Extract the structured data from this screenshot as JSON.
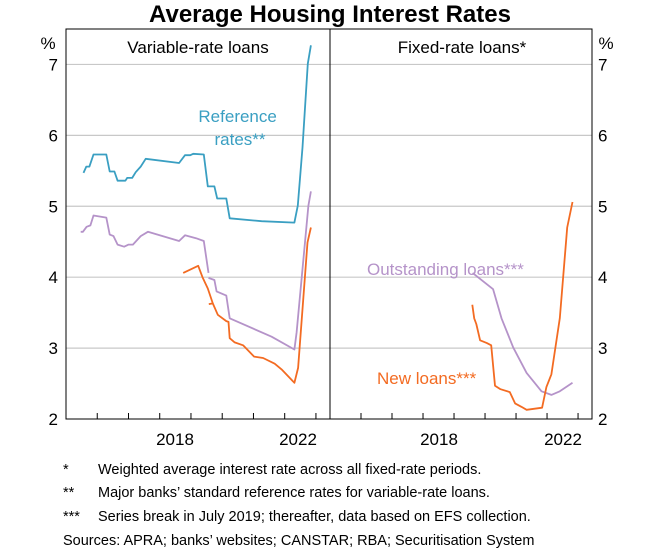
{
  "chart_data": [
    {
      "type": "line",
      "title": "Average Housing Interest Rates",
      "panel_title": "Variable-rate loans",
      "ylabel": "%",
      "ylim": [
        2,
        7.5
      ],
      "yticks": [
        2,
        3,
        4,
        5,
        6,
        7
      ],
      "xlim": [
        2015,
        2023.45
      ],
      "xtick_labels": [
        "2018",
        "2022"
      ],
      "grid": true,
      "series": [
        {
          "name": "Reference rates**",
          "color": "#3a9fc2",
          "segments": [
            [
              [
                2015.56,
                5.47
              ],
              [
                2015.65,
                5.56
              ],
              [
                2015.75,
                5.56
              ],
              [
                2015.88,
                5.73
              ],
              [
                2016.29,
                5.73
              ],
              [
                2016.4,
                5.49
              ],
              [
                2016.55,
                5.49
              ],
              [
                2016.65,
                5.36
              ],
              [
                2016.9,
                5.36
              ],
              [
                2016.96,
                5.4
              ],
              [
                2017.12,
                5.4
              ],
              [
                2017.23,
                5.48
              ],
              [
                2017.39,
                5.56
              ],
              [
                2017.55,
                5.67
              ],
              [
                2018.62,
                5.61
              ],
              [
                2018.81,
                5.72
              ],
              [
                2018.98,
                5.72
              ],
              [
                2019.07,
                5.74
              ],
              [
                2019.41,
                5.73
              ],
              [
                2019.54,
                5.28
              ],
              [
                2019.75,
                5.28
              ],
              [
                2019.84,
                5.11
              ],
              [
                2020.13,
                5.11
              ],
              [
                2020.24,
                4.83
              ],
              [
                2021.26,
                4.79
              ],
              [
                2022.31,
                4.77
              ],
              [
                2022.42,
                5.01
              ],
              [
                2022.57,
                5.83
              ],
              [
                2022.74,
                7.01
              ],
              [
                2022.84,
                7.27
              ]
            ]
          ]
        },
        {
          "name": "",
          "color": "#b593c9",
          "segments": [
            [
              [
                2015.47,
                4.64
              ],
              [
                2015.54,
                4.64
              ],
              [
                2015.66,
                4.71
              ],
              [
                2015.78,
                4.73
              ],
              [
                2015.88,
                4.87
              ],
              [
                2016.29,
                4.84
              ],
              [
                2016.4,
                4.6
              ],
              [
                2016.52,
                4.58
              ],
              [
                2016.65,
                4.46
              ],
              [
                2016.86,
                4.43
              ],
              [
                2017.0,
                4.46
              ],
              [
                2017.14,
                4.46
              ],
              [
                2017.39,
                4.58
              ],
              [
                2017.62,
                4.64
              ],
              [
                2018.62,
                4.51
              ],
              [
                2018.81,
                4.59
              ],
              [
                2019.16,
                4.55
              ],
              [
                2019.41,
                4.51
              ],
              [
                2019.56,
                4.06
              ]
            ],
            [
              [
                2019.56,
                3.99
              ],
              [
                2019.75,
                3.96
              ],
              [
                2019.82,
                3.8
              ],
              [
                2020.13,
                3.74
              ],
              [
                2020.24,
                3.42
              ],
              [
                2021.58,
                3.16
              ],
              [
                2022.31,
                2.98
              ],
              [
                2022.38,
                3.22
              ],
              [
                2022.76,
                5.01
              ],
              [
                2022.84,
                5.21
              ]
            ]
          ]
        },
        {
          "name": "",
          "color": "#f36b22",
          "segments": [
            [
              [
                2018.75,
                4.06
              ],
              [
                2019.23,
                4.16
              ],
              [
                2019.37,
                4.0
              ],
              [
                2019.54,
                3.84
              ],
              [
                2019.7,
                3.63
              ]
            ],
            [
              [
                2019.57,
                3.62
              ],
              [
                2019.7,
                3.63
              ],
              [
                2019.86,
                3.47
              ],
              [
                2020.13,
                3.38
              ],
              [
                2020.2,
                3.37
              ],
              [
                2020.24,
                3.14
              ],
              [
                2020.4,
                3.08
              ],
              [
                2020.67,
                3.04
              ],
              [
                2021.02,
                2.88
              ],
              [
                2021.31,
                2.86
              ],
              [
                2021.68,
                2.78
              ],
              [
                2021.9,
                2.7
              ],
              [
                2022.31,
                2.51
              ],
              [
                2022.43,
                2.72
              ],
              [
                2022.73,
                4.49
              ],
              [
                2022.84,
                4.7
              ]
            ]
          ]
        }
      ],
      "annotations": [
        {
          "text_line1": "Reference",
          "text_line2": "rates**",
          "series": "Reference rates**"
        }
      ]
    },
    {
      "type": "line",
      "panel_title": "Fixed-rate loans*",
      "ylabel": "%",
      "ylim": [
        2,
        7.5
      ],
      "yticks": [
        2,
        3,
        4,
        5,
        6,
        7
      ],
      "xlim": [
        2015,
        2023.45
      ],
      "xtick_labels": [
        "2018",
        "2022"
      ],
      "grid": true,
      "series": [
        {
          "name": "Outstanding loans***",
          "color": "#b593c9",
          "segments": [
            [
              [
                2019.6,
                4.06
              ],
              [
                2020.26,
                3.83
              ],
              [
                2020.53,
                3.42
              ],
              [
                2020.91,
                3.01
              ],
              [
                2021.34,
                2.65
              ],
              [
                2021.82,
                2.39
              ],
              [
                2022.14,
                2.34
              ],
              [
                2022.41,
                2.39
              ],
              [
                2022.82,
                2.51
              ]
            ]
          ]
        },
        {
          "name": "New loans***",
          "color": "#f36b22",
          "segments": [
            [
              [
                2019.59,
                3.61
              ],
              [
                2019.65,
                3.42
              ],
              [
                2019.72,
                3.34
              ],
              [
                2019.84,
                3.11
              ],
              [
                2020.06,
                3.07
              ],
              [
                2020.2,
                3.04
              ],
              [
                2020.32,
                2.47
              ],
              [
                2020.5,
                2.42
              ],
              [
                2020.8,
                2.38
              ],
              [
                2020.97,
                2.22
              ],
              [
                2021.18,
                2.17
              ],
              [
                2021.34,
                2.13
              ],
              [
                2021.84,
                2.16
              ],
              [
                2021.98,
                2.45
              ],
              [
                2022.14,
                2.63
              ],
              [
                2022.41,
                3.42
              ],
              [
                2022.65,
                4.7
              ],
              [
                2022.82,
                5.06
              ]
            ]
          ]
        }
      ]
    }
  ],
  "footnotes": [
    {
      "mark": "*",
      "text": "Weighted average interest rate across all fixed-rate periods."
    },
    {
      "mark": "**",
      "text": "Major banks’ standard reference rates for variable-rate loans."
    },
    {
      "mark": "***",
      "text": "Series break in July 2019; thereafter, data based on EFS collection."
    }
  ],
  "sources": "Sources: APRA; banks’ websites; CANSTAR; RBA; Securitisation System"
}
